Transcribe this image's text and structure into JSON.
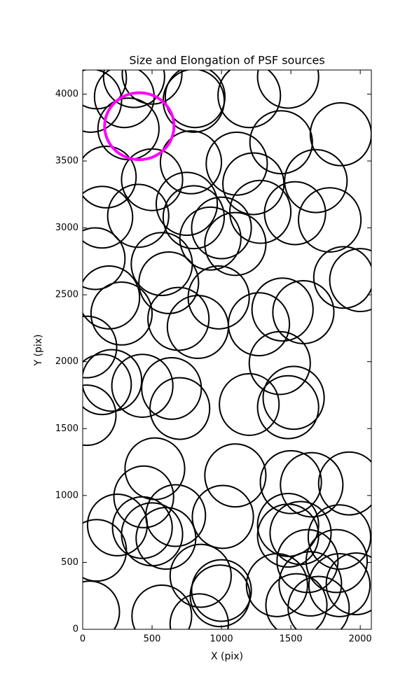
{
  "chart_data": {
    "type": "ellipse",
    "title": "Size and Elongation of PSF sources",
    "xlabel": "X (pix)",
    "ylabel": "Y (pix)",
    "xlim": [
      0,
      2080
    ],
    "ylim": [
      0,
      4180
    ],
    "xticks": [
      0,
      500,
      1000,
      1500,
      2000
    ],
    "yticks": [
      0,
      500,
      1000,
      1500,
      2000,
      2500,
      3000,
      3500,
      4000
    ],
    "ellipses": {
      "color": "#000000",
      "x": [
        100,
        370,
        500,
        60,
        300,
        800,
        810,
        1200,
        1480,
        1430,
        1860,
        330,
        780,
        1110,
        1230,
        1680,
        170,
        500,
        400,
        140,
        750,
        800,
        1000,
        1280,
        1530,
        1780,
        920,
        1100,
        90,
        570,
        620,
        980,
        190,
        280,
        1880,
        2000,
        1440,
        1590,
        1270,
        690,
        830,
        30,
        210,
        140,
        430,
        640,
        700,
        1420,
        1520,
        1480,
        1200,
        30,
        520,
        1100,
        1500,
        1650,
        1920,
        440,
        670,
        1010,
        250,
        430,
        500,
        600,
        1480,
        1480,
        1570,
        1850,
        100,
        1620,
        1830,
        850,
        1400,
        1640,
        1850,
        1970,
        1000,
        990,
        570,
        840,
        50,
        1540,
        1700
      ],
      "y": [
        4120,
        4130,
        4150,
        3950,
        3980,
        3950,
        3980,
        3990,
        4130,
        3640,
        3700,
        3740,
        3490,
        3480,
        3330,
        3350,
        3380,
        3360,
        3090,
        3080,
        3180,
        3080,
        3000,
        3120,
        3110,
        3060,
        2920,
        2880,
        2770,
        2730,
        2590,
        2480,
        2480,
        2360,
        2630,
        2610,
        2390,
        2370,
        2280,
        2320,
        2260,
        2110,
        1860,
        1830,
        1820,
        1800,
        1650,
        1990,
        1730,
        1660,
        1680,
        1600,
        1200,
        1150,
        1100,
        1080,
        1090,
        990,
        850,
        840,
        780,
        760,
        710,
        680,
        780,
        700,
        720,
        690,
        590,
        510,
        510,
        400,
        330,
        340,
        330,
        340,
        290,
        250,
        100,
        40,
        130,
        180,
        160
      ],
      "width": [
        430,
        440,
        430,
        440,
        430,
        440,
        430,
        450,
        440,
        450,
        440,
        440,
        440,
        440,
        440,
        450,
        430,
        440,
        440,
        440,
        440,
        440,
        430,
        440,
        440,
        450,
        440,
        440,
        430,
        440,
        430,
        440,
        440,
        440,
        430,
        440,
        440,
        440,
        440,
        440,
        440,
        430,
        430,
        420,
        440,
        430,
        430,
        440,
        440,
        440,
        430,
        420,
        430,
        440,
        440,
        450,
        440,
        430,
        430,
        440,
        430,
        430,
        440,
        430,
        440,
        440,
        440,
        450,
        430,
        440,
        440,
        440,
        440,
        450,
        440,
        430,
        430,
        430,
        430,
        420,
        430,
        440,
        440
      ],
      "height": [
        460,
        460,
        450,
        470,
        460,
        470,
        460,
        480,
        470,
        470,
        470,
        460,
        470,
        470,
        460,
        470,
        460,
        460,
        470,
        460,
        470,
        470,
        460,
        470,
        470,
        480,
        470,
        470,
        460,
        470,
        460,
        470,
        470,
        470,
        460,
        470,
        470,
        470,
        470,
        470,
        470,
        460,
        460,
        450,
        470,
        460,
        460,
        470,
        470,
        470,
        460,
        450,
        460,
        470,
        470,
        480,
        470,
        460,
        460,
        470,
        460,
        460,
        470,
        460,
        470,
        470,
        470,
        480,
        460,
        470,
        470,
        470,
        470,
        480,
        470,
        460,
        460,
        460,
        460,
        450,
        460,
        470,
        470
      ]
    },
    "highlight": {
      "color": "#ff00ff",
      "x": [
        408
      ],
      "y": [
        3760
      ],
      "width": [
        500
      ],
      "height": [
        500
      ]
    }
  }
}
